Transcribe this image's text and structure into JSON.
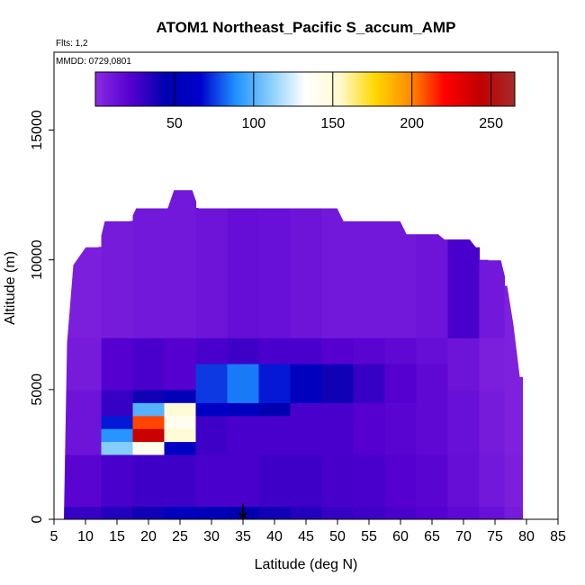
{
  "chart_data": {
    "type": "heatmap",
    "title": "ATOM1 Northeast_Pacific S_accum_AMP",
    "subtitle_flights": "Flts: 1,2",
    "subtitle_dates": "MMDD: 0729,0801",
    "xlabel": "Latitude (deg N)",
    "ylabel": "Altitude (m)",
    "xlim": [
      5,
      85
    ],
    "ylim": [
      0,
      18000
    ],
    "x_ticks": [
      "5",
      "10",
      "15",
      "20",
      "25",
      "30",
      "35",
      "40",
      "45",
      "50",
      "55",
      "60",
      "65",
      "70",
      "75",
      "80",
      "85"
    ],
    "y_ticks": [
      "0",
      "5000",
      "10000",
      "15000"
    ],
    "colorbar": {
      "min": 0,
      "max": 265,
      "ticks": [
        "50",
        "100",
        "150",
        "200",
        "250"
      ],
      "colors": [
        "#8a2be2",
        "#5500d0",
        "#0000b0",
        "#0000cd",
        "#1e90ff",
        "#87cefa",
        "#ffffff",
        "#fffacd",
        "#ffd700",
        "#ff8c00",
        "#ff0000",
        "#c00000",
        "#a52a2a"
      ]
    },
    "top_edge_profile": [
      [
        7,
        6800
      ],
      [
        8,
        9800
      ],
      [
        10,
        10500
      ],
      [
        12,
        10500
      ],
      [
        13,
        11500
      ],
      [
        17,
        11500
      ],
      [
        18,
        12000
      ],
      [
        23,
        12000
      ],
      [
        24,
        12700
      ],
      [
        27,
        12700
      ],
      [
        28,
        12000
      ],
      [
        50,
        12000
      ],
      [
        51,
        11500
      ],
      [
        60,
        11500
      ],
      [
        61,
        11000
      ],
      [
        66,
        11000
      ],
      [
        67,
        10800
      ],
      [
        71,
        10800
      ],
      [
        72,
        10500
      ],
      [
        73,
        10500
      ],
      [
        74,
        10000
      ],
      [
        76,
        10000
      ],
      [
        77,
        9000
      ],
      [
        78,
        7500
      ],
      [
        79,
        5500
      ],
      [
        79.5,
        5500
      ],
      [
        79.5,
        0
      ],
      [
        6.5,
        0
      ]
    ],
    "latitude_bins": [
      {
        "lat": 10,
        "bins": [
          {
            "z0": 0,
            "z1": 500,
            "v": 30
          },
          {
            "z0": 500,
            "z1": 2500,
            "v": 20
          },
          {
            "z0": 2500,
            "z1": 5000,
            "v": 12
          },
          {
            "z0": 5000,
            "z1": 7000,
            "v": 8
          },
          {
            "z0": 7000,
            "z1": 10500,
            "v": 6
          }
        ]
      },
      {
        "lat": 15,
        "bins": [
          {
            "z0": 0,
            "z1": 500,
            "v": 35
          },
          {
            "z0": 500,
            "z1": 2500,
            "v": 25
          },
          {
            "z0": 2500,
            "z1": 3000,
            "v": 110
          },
          {
            "z0": 3000,
            "z1": 3500,
            "v": 90
          },
          {
            "z0": 3500,
            "z1": 4000,
            "v": 70
          },
          {
            "z0": 4000,
            "z1": 5000,
            "v": 30
          },
          {
            "z0": 5000,
            "z1": 7000,
            "v": 22
          },
          {
            "z0": 7000,
            "z1": 11500,
            "v": 8
          }
        ]
      },
      {
        "lat": 20,
        "bins": [
          {
            "z0": 0,
            "z1": 500,
            "v": 40
          },
          {
            "z0": 500,
            "z1": 2500,
            "v": 28
          },
          {
            "z0": 2500,
            "z1": 3000,
            "v": 140
          },
          {
            "z0": 3000,
            "z1": 3500,
            "v": 240
          },
          {
            "z0": 3500,
            "z1": 4000,
            "v": 210
          },
          {
            "z0": 4000,
            "z1": 4500,
            "v": 100
          },
          {
            "z0": 4500,
            "z1": 5000,
            "v": 40
          },
          {
            "z0": 5000,
            "z1": 7000,
            "v": 25
          },
          {
            "z0": 7000,
            "z1": 12000,
            "v": 10
          }
        ]
      },
      {
        "lat": 25,
        "bins": [
          {
            "z0": 0,
            "z1": 500,
            "v": 55
          },
          {
            "z0": 500,
            "z1": 2500,
            "v": 28
          },
          {
            "z0": 2500,
            "z1": 3000,
            "v": 60
          },
          {
            "z0": 3000,
            "z1": 3500,
            "v": 150
          },
          {
            "z0": 3500,
            "z1": 4000,
            "v": 140
          },
          {
            "z0": 4000,
            "z1": 4500,
            "v": 150
          },
          {
            "z0": 4500,
            "z1": 5000,
            "v": 50
          },
          {
            "z0": 5000,
            "z1": 7000,
            "v": 22
          },
          {
            "z0": 7000,
            "z1": 12700,
            "v": 10
          }
        ]
      },
      {
        "lat": 30,
        "bins": [
          {
            "z0": 0,
            "z1": 500,
            "v": 50
          },
          {
            "z0": 500,
            "z1": 2500,
            "v": 25
          },
          {
            "z0": 2500,
            "z1": 4000,
            "v": 28
          },
          {
            "z0": 4000,
            "z1": 4500,
            "v": 60
          },
          {
            "z0": 4500,
            "z1": 6000,
            "v": 75
          },
          {
            "z0": 6000,
            "z1": 7000,
            "v": 25
          },
          {
            "z0": 7000,
            "z1": 12000,
            "v": 12
          }
        ]
      },
      {
        "lat": 35,
        "bins": [
          {
            "z0": 0,
            "z1": 500,
            "v": 45
          },
          {
            "z0": 500,
            "z1": 2500,
            "v": 25
          },
          {
            "z0": 2500,
            "z1": 4000,
            "v": 25
          },
          {
            "z0": 4000,
            "z1": 4500,
            "v": 55
          },
          {
            "z0": 4500,
            "z1": 6000,
            "v": 85
          },
          {
            "z0": 6000,
            "z1": 7000,
            "v": 28
          },
          {
            "z0": 7000,
            "z1": 12000,
            "v": 15
          }
        ]
      },
      {
        "lat": 40,
        "bins": [
          {
            "z0": 0,
            "z1": 500,
            "v": 40
          },
          {
            "z0": 500,
            "z1": 2500,
            "v": 28
          },
          {
            "z0": 2500,
            "z1": 4000,
            "v": 25
          },
          {
            "z0": 4000,
            "z1": 4500,
            "v": 45
          },
          {
            "z0": 4500,
            "z1": 6000,
            "v": 70
          },
          {
            "z0": 6000,
            "z1": 7000,
            "v": 25
          },
          {
            "z0": 7000,
            "z1": 12000,
            "v": 14
          }
        ]
      },
      {
        "lat": 45,
        "bins": [
          {
            "z0": 0,
            "z1": 500,
            "v": 35
          },
          {
            "z0": 500,
            "z1": 2500,
            "v": 28
          },
          {
            "z0": 2500,
            "z1": 4500,
            "v": 25
          },
          {
            "z0": 4500,
            "z1": 6000,
            "v": 55
          },
          {
            "z0": 6000,
            "z1": 7000,
            "v": 25
          },
          {
            "z0": 7000,
            "z1": 12000,
            "v": 12
          }
        ]
      },
      {
        "lat": 50,
        "bins": [
          {
            "z0": 0,
            "z1": 500,
            "v": 30
          },
          {
            "z0": 500,
            "z1": 2500,
            "v": 26
          },
          {
            "z0": 2500,
            "z1": 4500,
            "v": 25
          },
          {
            "z0": 4500,
            "z1": 6000,
            "v": 40
          },
          {
            "z0": 6000,
            "z1": 7000,
            "v": 22
          },
          {
            "z0": 7000,
            "z1": 12000,
            "v": 10
          }
        ]
      },
      {
        "lat": 55,
        "bins": [
          {
            "z0": 0,
            "z1": 500,
            "v": 28
          },
          {
            "z0": 500,
            "z1": 2500,
            "v": 25
          },
          {
            "z0": 2500,
            "z1": 4500,
            "v": 22
          },
          {
            "z0": 4500,
            "z1": 6000,
            "v": 30
          },
          {
            "z0": 6000,
            "z1": 7000,
            "v": 20
          },
          {
            "z0": 7000,
            "z1": 11500,
            "v": 10
          }
        ]
      },
      {
        "lat": 60,
        "bins": [
          {
            "z0": 0,
            "z1": 500,
            "v": 25
          },
          {
            "z0": 500,
            "z1": 2500,
            "v": 22
          },
          {
            "z0": 2500,
            "z1": 4500,
            "v": 20
          },
          {
            "z0": 4500,
            "z1": 6000,
            "v": 22
          },
          {
            "z0": 6000,
            "z1": 7000,
            "v": 18
          },
          {
            "z0": 7000,
            "z1": 11500,
            "v": 10
          }
        ]
      },
      {
        "lat": 65,
        "bins": [
          {
            "z0": 0,
            "z1": 500,
            "v": 22
          },
          {
            "z0": 500,
            "z1": 2500,
            "v": 20
          },
          {
            "z0": 2500,
            "z1": 4500,
            "v": 18
          },
          {
            "z0": 4500,
            "z1": 6000,
            "v": 18
          },
          {
            "z0": 6000,
            "z1": 7000,
            "v": 15
          },
          {
            "z0": 7000,
            "z1": 11000,
            "v": 12
          }
        ]
      },
      {
        "lat": 70,
        "bins": [
          {
            "z0": 0,
            "z1": 500,
            "v": 18
          },
          {
            "z0": 500,
            "z1": 2500,
            "v": 15
          },
          {
            "z0": 2500,
            "z1": 5000,
            "v": 14
          },
          {
            "z0": 5000,
            "z1": 7000,
            "v": 12
          },
          {
            "z0": 7000,
            "z1": 10800,
            "v": 25
          }
        ]
      },
      {
        "lat": 75,
        "bins": [
          {
            "z0": 0,
            "z1": 500,
            "v": 14
          },
          {
            "z0": 500,
            "z1": 2500,
            "v": 10
          },
          {
            "z0": 2500,
            "z1": 5000,
            "v": 8
          },
          {
            "z0": 5000,
            "z1": 7000,
            "v": 6
          },
          {
            "z0": 7000,
            "z1": 10000,
            "v": 10
          }
        ]
      },
      {
        "lat": 78,
        "bins": [
          {
            "z0": 0,
            "z1": 500,
            "v": 8
          },
          {
            "z0": 500,
            "z1": 2500,
            "v": 6
          },
          {
            "z0": 2500,
            "z1": 5500,
            "v": 5
          },
          {
            "z0": 5500,
            "z1": 7500,
            "v": 5
          },
          {
            "z0": 7500,
            "z1": 9000,
            "v": 5
          }
        ]
      }
    ],
    "arrow_marker_lat": 35
  }
}
